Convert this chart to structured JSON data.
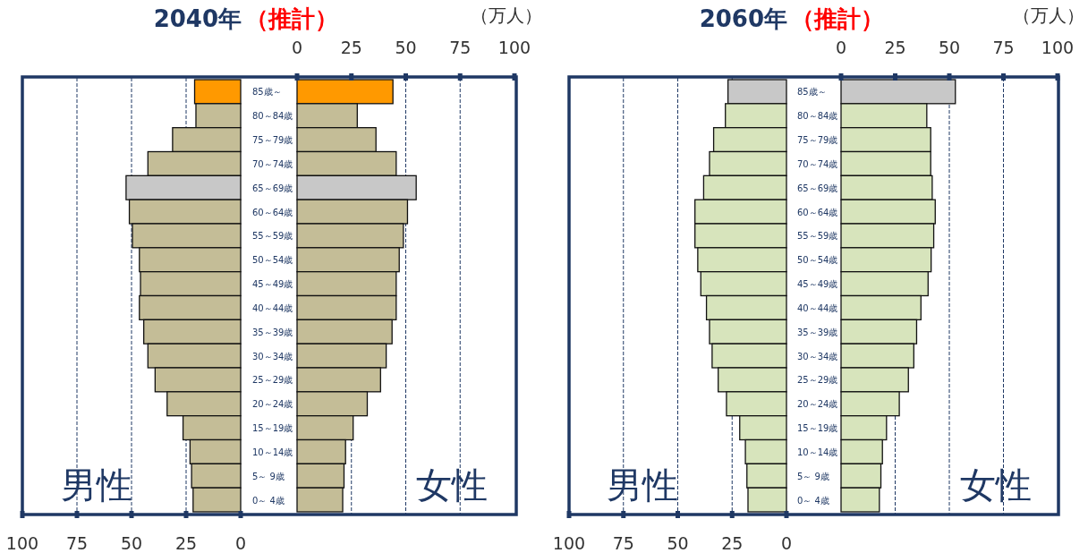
{
  "chart_data": [
    {
      "type": "bar",
      "orientation": "horizontal",
      "title": "2040年",
      "categories": [
        "85歳～",
        "80～84歳",
        "75～79歳",
        "70～74歳",
        "65～69歳",
        "60～64歳",
        "55～59歳",
        "50～54歳",
        "45～49歳",
        "40～44歳",
        "35～39歳",
        "30～34歳",
        "25～29歳",
        "20～24歳",
        "15～19歳",
        "10～14歳",
        "5～ 9歳",
        "0～ 4歳"
      ],
      "values": [
        21.1,
        20.5,
        31.2,
        42.5,
        52.5,
        51.0,
        49.6,
        46.4,
        45.9,
        46.4,
        44.4,
        42.5,
        39.2,
        33.7,
        26.4,
        23.2,
        22.5,
        21.8
      ],
      "colors": [
        "#ff9900",
        "#c4bd97",
        "#c4bd97",
        "#c4bd97",
        "#c8c8c8",
        "#c4bd97",
        "#c4bd97",
        "#c4bd97",
        "#c4bd97",
        "#c4bd97",
        "#c4bd97",
        "#c4bd97",
        "#c4bd97",
        "#c4bd97",
        "#c4bd97",
        "#c4bd97",
        "#c4bd97",
        "#c4bd97"
      ],
      "xlim": [
        100,
        0
      ],
      "xticks": [
        100,
        75,
        50,
        25,
        0
      ],
      "grid": "x",
      "annotations": [
        "男性"
      ]
    },
    {
      "type": "bar",
      "orientation": "horizontal",
      "subtitle": "（推計）",
      "xlabel": "（万人）",
      "values": [
        44.1,
        27.7,
        36.3,
        45.6,
        54.8,
        50.8,
        48.9,
        47.0,
        45.6,
        45.6,
        43.7,
        41.0,
        38.4,
        32.3,
        25.8,
        22.3,
        21.6,
        21.0
      ],
      "colors": [
        "#ff9900",
        "#c4bd97",
        "#c4bd97",
        "#c4bd97",
        "#c8c8c8",
        "#c4bd97",
        "#c4bd97",
        "#c4bd97",
        "#c4bd97",
        "#c4bd97",
        "#c4bd97",
        "#c4bd97",
        "#c4bd97",
        "#c4bd97",
        "#c4bd97",
        "#c4bd97",
        "#c4bd97",
        "#c4bd97"
      ],
      "xlim": [
        0,
        100
      ],
      "xticks": [
        0,
        25,
        50,
        75,
        100
      ],
      "grid": "x",
      "tick_labels": "x",
      "annotations": [
        "女性"
      ]
    },
    {
      "type": "bar",
      "orientation": "horizontal",
      "title": "2060年",
      "categories": [
        "85歳～",
        "80～84歳",
        "75～79歳",
        "70～74歳",
        "65～69歳",
        "60～64歳",
        "55～59歳",
        "50～54歳",
        "45～49歳",
        "40～44歳",
        "35～39歳",
        "30～34歳",
        "25～29歳",
        "20～24歳",
        "15～19歳",
        "10～14歳",
        "5～ 9歳",
        "0～ 4歳"
      ],
      "values": [
        26.9,
        28.1,
        33.5,
        35.4,
        38.1,
        42.1,
        42.1,
        40.8,
        39.4,
        36.8,
        35.4,
        34.2,
        31.4,
        27.6,
        21.5,
        18.9,
        18.2,
        17.7
      ],
      "colors": [
        "#c8c8c8",
        "#d7e4bc",
        "#d7e4bc",
        "#d7e4bc",
        "#d7e4bc",
        "#d7e4bc",
        "#d7e4bc",
        "#d7e4bc",
        "#d7e4bc",
        "#d7e4bc",
        "#d7e4bc",
        "#d7e4bc",
        "#d7e4bc",
        "#d7e4bc",
        "#d7e4bc",
        "#d7e4bc",
        "#d7e4bc",
        "#d7e4bc"
      ],
      "xlim": [
        100,
        0
      ],
      "xticks": [
        100,
        75,
        50,
        25,
        0
      ],
      "grid": "x",
      "annotations": [
        "男性"
      ]
    },
    {
      "type": "bar",
      "orientation": "horizontal",
      "subtitle": "（推計）",
      "xlabel": "（万人）",
      "values": [
        52.8,
        39.6,
        41.4,
        41.4,
        42.1,
        43.5,
        42.8,
        41.6,
        40.2,
        36.9,
        34.9,
        33.6,
        31.1,
        26.9,
        21.0,
        19.1,
        18.4,
        17.7
      ],
      "colors": [
        "#c8c8c8",
        "#d7e4bc",
        "#d7e4bc",
        "#d7e4bc",
        "#d7e4bc",
        "#d7e4bc",
        "#d7e4bc",
        "#d7e4bc",
        "#d7e4bc",
        "#d7e4bc",
        "#d7e4bc",
        "#d7e4bc",
        "#d7e4bc",
        "#d7e4bc",
        "#d7e4bc",
        "#d7e4bc",
        "#d7e4bc",
        "#d7e4bc"
      ],
      "xlim": [
        0,
        100
      ],
      "xticks": [
        0,
        25,
        50,
        75,
        100
      ],
      "grid": "x",
      "tick_labels": "x",
      "annotations": [
        "女性"
      ]
    }
  ]
}
